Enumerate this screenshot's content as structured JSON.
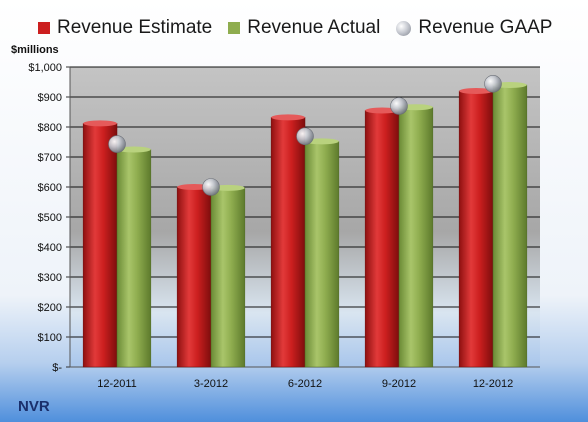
{
  "chart_data": {
    "type": "bar",
    "categories": [
      "12-2011",
      "3-2012",
      "6-2012",
      "9-2012",
      "12-2012"
    ],
    "series": [
      {
        "name": "Revenue Estimate",
        "type": "bar",
        "values": [
          812,
          600,
          832,
          855,
          920
        ]
      },
      {
        "name": "Revenue Actual",
        "type": "bar",
        "values": [
          725,
          597,
          752,
          866,
          940
        ]
      },
      {
        "name": "Revenue GAAP",
        "type": "scatter",
        "values": [
          743,
          600,
          769,
          870,
          944
        ]
      }
    ],
    "ylabel": "$millions",
    "ylim": [
      0,
      1000
    ],
    "yticks": [
      0,
      100,
      200,
      300,
      400,
      500,
      600,
      700,
      800,
      900,
      1000
    ],
    "ytick_labels": [
      "$-",
      "$100",
      "$200",
      "$300",
      "$400",
      "$500",
      "$600",
      "$700",
      "$800",
      "$900",
      "$1,000"
    ],
    "grid": true,
    "legend_position": "top",
    "colors": {
      "Revenue Estimate": "#cc1f1f",
      "Revenue Actual": "#8fad4f",
      "Revenue GAAP": "#a9adb5"
    }
  },
  "footer": {
    "company": "NVR"
  }
}
